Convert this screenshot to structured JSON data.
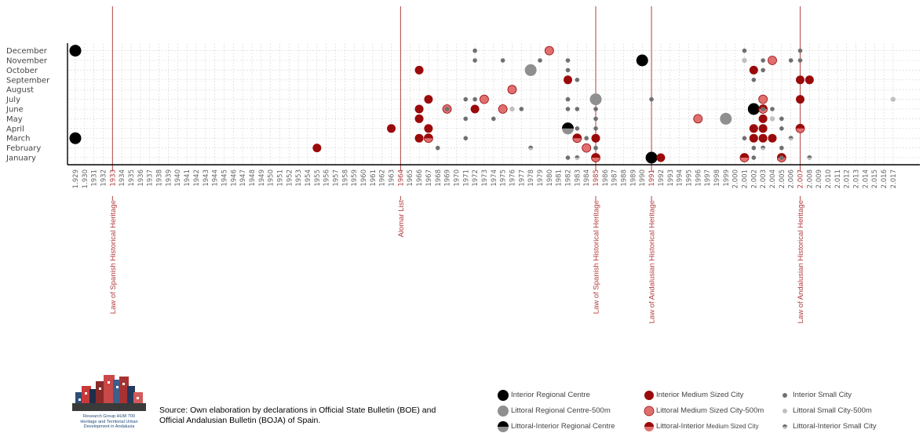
{
  "chart_data": {
    "type": "scatter",
    "title": "",
    "xlabel": "",
    "ylabel": "",
    "months": [
      "January",
      "February",
      "March",
      "April",
      "May",
      "June",
      "July",
      "August",
      "September",
      "October",
      "November",
      "December"
    ],
    "x_range": [
      1929,
      2017
    ],
    "x_tick_labels": [
      "1.929",
      "1.930",
      "1931",
      "1932",
      "1933",
      "1934",
      "1935",
      "1936",
      "1937",
      "1938",
      "1939",
      "1940",
      "1941",
      "1942",
      "1943",
      "1944",
      "1945",
      "1946",
      "1947",
      "1948",
      "1949",
      "1950",
      "1951",
      "1952",
      "1953",
      "1954",
      "1955",
      "1956",
      "1957",
      "1958",
      "1959",
      "1960",
      "1961",
      "1962",
      "1963",
      "1964",
      "1965",
      "1966",
      "1967",
      "1968",
      "1969",
      "1970",
      "1971",
      "1972",
      "1973",
      "1974",
      "1975",
      "1976",
      "1977",
      "1978",
      "1979",
      "1980",
      "1981",
      "1982",
      "1983",
      "1984",
      "1985",
      "1986",
      "1987",
      "1988",
      "1989",
      "1990",
      "1991",
      "1992",
      "1993",
      "1994",
      "1995",
      "1996",
      "1997",
      "1998",
      "1999",
      "2.000",
      "2.001",
      "2.002",
      "2.003",
      "2.004",
      "2.005",
      "2.006",
      "2.007",
      "2.008",
      "2.009",
      "2.010",
      "2.011",
      "2.012",
      "2.013",
      "2.014",
      "2.015",
      "2.016",
      "2.017"
    ],
    "legislation": [
      {
        "year": 1933,
        "label": "Law of Spanish Historical Heritage"
      },
      {
        "year": 1964,
        "label": "Alomar List"
      },
      {
        "year": 1985,
        "label": "Law of Spanish Historical Heritage"
      },
      {
        "year": 1991,
        "label": "Law of Andalusian Historical Heritage"
      },
      {
        "year": 2007,
        "label": "Law of Andalusian Historical Heritage"
      }
    ],
    "series": [
      {
        "name": "Interior Regional Centre",
        "style": "black-large",
        "points": [
          [
            1929,
            12
          ],
          [
            1929,
            3
          ],
          [
            1990,
            11
          ],
          [
            1991,
            1
          ],
          [
            2002,
            6
          ]
        ]
      },
      {
        "name": "Littoral Regional Centre-500m",
        "style": "gray-large",
        "points": [
          [
            1978,
            10
          ],
          [
            1985,
            7
          ],
          [
            1999,
            5
          ]
        ]
      },
      {
        "name": "Littoral-Interior Regional Centre",
        "style": "black-gray-large",
        "points": [
          [
            1982,
            4
          ]
        ]
      },
      {
        "name": "Interior Medium Sized City",
        "style": "red",
        "points": [
          [
            1955,
            2
          ],
          [
            1963,
            4
          ],
          [
            1966,
            10
          ],
          [
            1966,
            6
          ],
          [
            1966,
            5
          ],
          [
            1966,
            3
          ],
          [
            1967,
            7
          ],
          [
            1967,
            4
          ],
          [
            1972,
            6
          ],
          [
            1982,
            9
          ],
          [
            1985,
            3
          ],
          [
            1992,
            1
          ],
          [
            2002,
            10
          ],
          [
            2002,
            4
          ],
          [
            2002,
            3
          ],
          [
            2003,
            5
          ],
          [
            2003,
            4
          ],
          [
            2003,
            3
          ],
          [
            2004,
            3
          ],
          [
            2007,
            9
          ],
          [
            2007,
            7
          ],
          [
            2008,
            9
          ]
        ]
      },
      {
        "name": "Littoral Medium Sized City-500m",
        "style": "pink",
        "points": [
          [
            1969,
            6
          ],
          [
            1973,
            7
          ],
          [
            1975,
            6
          ],
          [
            1976,
            8
          ],
          [
            1980,
            12
          ],
          [
            1984,
            2
          ],
          [
            1996,
            5
          ],
          [
            2003,
            7
          ],
          [
            2004,
            11
          ]
        ]
      },
      {
        "name": "Littoral-Interior Medium Sized City",
        "style": "red-pink",
        "points": [
          [
            1967,
            3
          ],
          [
            1983,
            3
          ],
          [
            1985,
            1
          ],
          [
            2001,
            1
          ],
          [
            2003,
            6
          ],
          [
            2005,
            1
          ],
          [
            2007,
            4
          ]
        ]
      },
      {
        "name": "Interior Small City",
        "style": "gray-small",
        "points": [
          [
            1968,
            2
          ],
          [
            1969,
            6
          ],
          [
            1971,
            7
          ],
          [
            1971,
            5
          ],
          [
            1971,
            3
          ],
          [
            1972,
            12
          ],
          [
            1972,
            11
          ],
          [
            1972,
            7
          ],
          [
            1974,
            5
          ],
          [
            1975,
            11
          ],
          [
            1977,
            6
          ],
          [
            1979,
            11
          ],
          [
            1982,
            11
          ],
          [
            1982,
            10
          ],
          [
            1982,
            7
          ],
          [
            1982,
            6
          ],
          [
            1982,
            1
          ],
          [
            1983,
            9
          ],
          [
            1983,
            6
          ],
          [
            1983,
            4
          ],
          [
            1984,
            3
          ],
          [
            1985,
            6
          ],
          [
            1985,
            5
          ],
          [
            1985,
            4
          ],
          [
            1985,
            2
          ],
          [
            1991,
            7
          ],
          [
            2001,
            12
          ],
          [
            2001,
            3
          ],
          [
            2002,
            9
          ],
          [
            2002,
            2
          ],
          [
            2002,
            1
          ],
          [
            2003,
            11
          ],
          [
            2003,
            10
          ],
          [
            2003,
            6
          ],
          [
            2004,
            6
          ],
          [
            2005,
            5
          ],
          [
            2005,
            4
          ],
          [
            2005,
            2
          ],
          [
            2005,
            1
          ],
          [
            2006,
            11
          ],
          [
            2006,
            3
          ],
          [
            2007,
            12
          ],
          [
            2007,
            11
          ],
          [
            2008,
            1
          ]
        ]
      },
      {
        "name": "Littoral Small City-500m",
        "style": "lightgray-small",
        "points": [
          [
            1976,
            6
          ],
          [
            2001,
            11
          ],
          [
            2004,
            5
          ],
          [
            2017,
            7
          ]
        ]
      },
      {
        "name": "Littoral-Interior Small City",
        "style": "graywhite-small",
        "points": [
          [
            1978,
            2
          ],
          [
            1983,
            1
          ],
          [
            2003,
            2
          ],
          [
            2006,
            3
          ],
          [
            2008,
            1
          ]
        ]
      }
    ]
  },
  "legend": {
    "items": [
      {
        "label": "Interior Regional Centre"
      },
      {
        "label": "Littoral Regional Centre-500m"
      },
      {
        "label": "Littoral-Interior Regional Centre"
      },
      {
        "label": "Interior Medium Sized City"
      },
      {
        "label": "Littoral Medium Sized City-500m"
      },
      {
        "label_main": "Littoral-Interior",
        "label_small": "Medium Sized City"
      },
      {
        "label": "Interior Small City"
      },
      {
        "label": "Littoral Small City-500m"
      },
      {
        "label": "Littoral-Interior Small City"
      }
    ]
  },
  "source": {
    "line1": "Source: Own elaboration by declarations in Official State Bulletin (BOE) and",
    "line2": "Official Andalusian Bulletin (BOJA) of Spain."
  },
  "logo": {
    "caption_line1": "Research Group HUM 700",
    "caption_line2": "Heritage and Territorial Urban",
    "caption_line3": "Development in Andalusia"
  },
  "colors": {
    "black": "#000000",
    "gray_large": "#8f8f8f",
    "red": "#9b0a0a",
    "pink": "#e07070",
    "small_gray": "#707070",
    "light_gray": "#c0c0c0",
    "law_line": "#b85353"
  }
}
